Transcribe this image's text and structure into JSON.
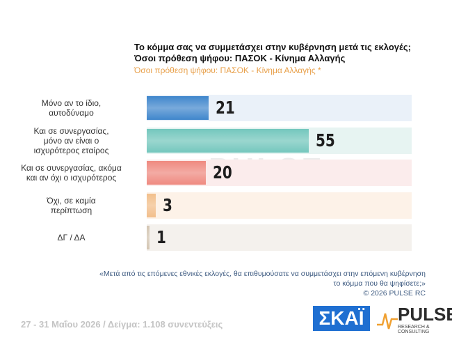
{
  "chart_data": {
    "type": "hbar",
    "title_lines": [
      "Το κόμμα σας να συμμετάσχει στην κυβέρνηση μετά τις εκλογές;",
      "Όσοι πρόθεση ψήφου: ΠΑΣΟΚ - Κίνημα Αλλαγής"
    ],
    "subtitle": "Όσοι πρόθεση ψήφου: ΠΑΣΟΚ - Κίνημα Αλλαγής *",
    "categories": [
      "Μόνο αν το ίδιο,\nαυτοδύναμο",
      "Και σε συνεργασίας,\nμόνο αν είναι ο\nισχυρότερος εταίρος",
      "Και σε συνεργασίας, ακόμα\nκαι αν όχι ο ισχυρότερος",
      "Όχι, σε καμία\nπερίπτωση",
      "ΔΓ / ΔΑ"
    ],
    "values": [
      21,
      55,
      20,
      3,
      1
    ],
    "colors": [
      "#3f86cc",
      "#74c7bd",
      "#ef8a80",
      "#f2bf8c",
      "#d4c6b3"
    ],
    "track_colors": [
      "#eaf1f9",
      "#e7f4f2",
      "#fbecec",
      "#fdf2e8",
      "#f4f1ed"
    ],
    "xlim": [
      0,
      90
    ],
    "note_lines": [
      "«Μετά από τις επόμενες εθνικές εκλογές, θα επιθυμούσατε να συμμετάσχει στην επόμενη κυβέρνηση",
      "το κόμμα που θα ψηφίσετε;»",
      "©  2026  PULSE RC"
    ],
    "footer": "27 - 31 Μαΐου 2026  /  Δείγμα:  1.108 συνεντεύξεις",
    "logo_skai": "ΣΚΑΪ",
    "logo_pulse": "PULSE",
    "logo_pulse_sub": "RESEARCH & CONSULTING"
  }
}
